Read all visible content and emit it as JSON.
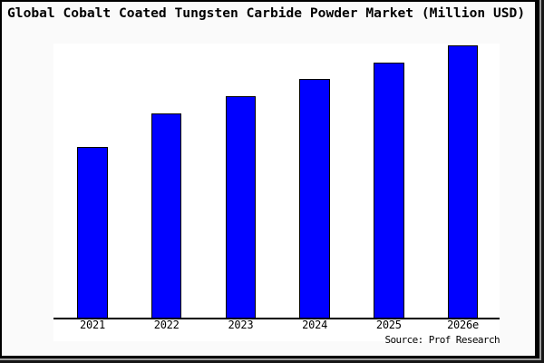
{
  "window": {
    "background_color": "#fafafa",
    "frame_border_color": "#000000",
    "shadow_gray_color": "#9e9e9e",
    "shadow_dark_color": "#161616"
  },
  "chart_data": {
    "type": "bar",
    "title": "Global Cobalt Coated Tungsten Carbide Powder Market (Million USD)",
    "categories": [
      "2021",
      "2022",
      "2023",
      "2024",
      "2025",
      "2026e"
    ],
    "values": [
      62.7,
      75.0,
      81.3,
      87.7,
      93.7,
      100.0
    ],
    "values_note": "y-axis is unlabeled in the image; values are relative bar heights normalized to 2026e = 100",
    "xlabel": "",
    "ylabel": "",
    "ylim": [
      0,
      100
    ],
    "grid": false,
    "legend": false,
    "bar_color": "#0000ff",
    "bar_border_color": "#000000",
    "plot_background": "#ffffff",
    "source_label": "Source: Prof Research"
  }
}
